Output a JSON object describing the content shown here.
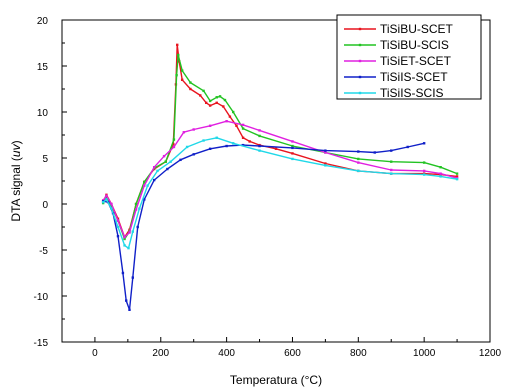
{
  "chart_data": {
    "type": "line",
    "xlabel": "Temperatura (°C)",
    "ylabel_prefix": "DTA signal (",
    "ylabel_unit": "uv",
    "ylabel_suffix": ")",
    "xlim": [
      -100,
      1200
    ],
    "ylim": [
      -15,
      20
    ],
    "xticks": [
      0,
      200,
      400,
      600,
      800,
      1000,
      1200
    ],
    "yticks": [
      -15,
      -10,
      -5,
      0,
      5,
      10,
      15,
      20
    ],
    "grid": false,
    "legend_position": "top-right",
    "series": [
      {
        "name": "TiSiBU-SCET",
        "color": "#e8141e",
        "x": [
          25,
          35,
          50,
          70,
          90,
          105,
          125,
          150,
          180,
          215,
          238,
          246,
          250,
          256,
          265,
          290,
          320,
          338,
          350,
          370,
          390,
          410,
          430,
          450,
          470,
          500,
          550,
          600,
          700,
          800,
          900,
          1000,
          1050,
          1100
        ],
        "y": [
          0.2,
          1.0,
          0.0,
          -1.6,
          -3.6,
          -2.8,
          0.0,
          2.4,
          3.8,
          4.6,
          6.5,
          13.0,
          17.3,
          15.5,
          13.5,
          12.5,
          11.8,
          11.0,
          10.7,
          11.0,
          10.6,
          9.5,
          8.5,
          7.2,
          6.8,
          6.4,
          6.0,
          5.5,
          4.4,
          3.6,
          3.3,
          3.3,
          3.2,
          3.0
        ]
      },
      {
        "name": "TiSiBU-SCIS",
        "color": "#22c322",
        "x": [
          25,
          35,
          50,
          70,
          90,
          105,
          125,
          150,
          180,
          215,
          240,
          248,
          253,
          265,
          290,
          330,
          350,
          370,
          380,
          395,
          420,
          450,
          500,
          600,
          700,
          800,
          900,
          1000,
          1050,
          1100
        ],
        "y": [
          0.1,
          0.8,
          -0.2,
          -1.8,
          -3.8,
          -3.0,
          0.0,
          2.4,
          3.9,
          4.6,
          7.0,
          14.0,
          16.2,
          14.5,
          13.2,
          12.3,
          11.2,
          11.6,
          11.7,
          11.3,
          10.0,
          8.2,
          7.4,
          6.3,
          5.6,
          4.9,
          4.6,
          4.5,
          4.0,
          3.3
        ]
      },
      {
        "name": "TiSiET-SCET",
        "color": "#e020e0",
        "x": [
          25,
          35,
          50,
          70,
          90,
          105,
          125,
          150,
          180,
          210,
          240,
          270,
          300,
          350,
          400,
          450,
          500,
          600,
          700,
          800,
          900,
          1000,
          1050,
          1100
        ],
        "y": [
          0.4,
          0.9,
          0.0,
          -1.8,
          -3.6,
          -3.1,
          -0.6,
          2.0,
          4.0,
          5.2,
          6.2,
          7.8,
          8.1,
          8.5,
          9.0,
          8.6,
          8.0,
          6.8,
          5.6,
          4.5,
          3.7,
          3.6,
          3.3,
          2.8
        ]
      },
      {
        "name": "TiSiIS-SCET",
        "color": "#1020c8",
        "x": [
          25,
          40,
          55,
          70,
          85,
          95,
          105,
          115,
          130,
          150,
          180,
          220,
          260,
          300,
          350,
          400,
          450,
          500,
          600,
          700,
          800,
          850,
          900,
          950,
          1000
        ],
        "y": [
          0.3,
          0.2,
          -1.0,
          -3.5,
          -7.5,
          -10.5,
          -11.5,
          -8.0,
          -2.5,
          0.5,
          2.6,
          3.8,
          4.8,
          5.4,
          6.0,
          6.3,
          6.4,
          6.3,
          6.1,
          5.8,
          5.7,
          5.6,
          5.8,
          6.2,
          6.6
        ]
      },
      {
        "name": "TiSiIS-SCIS",
        "color": "#20d8e8",
        "x": [
          25,
          35,
          50,
          70,
          90,
          102,
          115,
          135,
          160,
          190,
          230,
          280,
          330,
          370,
          420,
          500,
          600,
          700,
          800,
          900,
          1000,
          1050,
          1100
        ],
        "y": [
          0.2,
          0.5,
          -0.5,
          -2.5,
          -4.5,
          -4.8,
          -3.0,
          -0.5,
          2.0,
          3.6,
          4.6,
          6.2,
          6.9,
          7.2,
          6.6,
          5.8,
          4.9,
          4.2,
          3.6,
          3.3,
          3.2,
          3.0,
          2.7
        ]
      }
    ]
  }
}
